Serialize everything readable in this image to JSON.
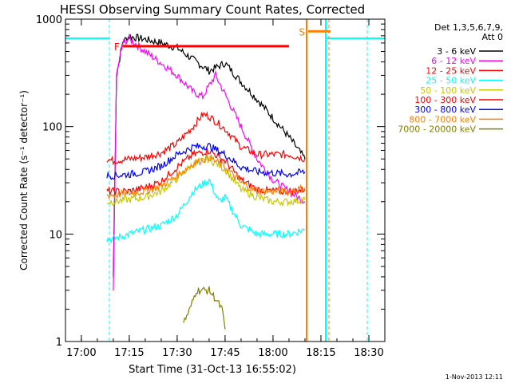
{
  "chart_data": {
    "type": "line",
    "title": "HESSI Observing Summary Count Rates, Corrected",
    "xlabel": "Start Time (31-Oct-13 16:55:02)",
    "ylabel": "Corrected Count Rate (s⁻¹ detector⁻¹)",
    "yscale": "log",
    "ylim": [
      1,
      1000
    ],
    "xlim": [
      "16:55:02",
      "18:35:00"
    ],
    "x_ticks": [
      "17:00",
      "17:15",
      "17:30",
      "17:45",
      "18:00",
      "18:15",
      "18:30"
    ],
    "y_ticks": [
      "1",
      "10",
      "100",
      "1000"
    ],
    "legend_header": [
      "Det 1,3,5,6,7,9,",
      "Att 0"
    ],
    "legend_position": "right, outside plot",
    "footer": "1-Nov-2013 12:11",
    "annotations": [
      {
        "label": "F",
        "color": "#ff0000",
        "x_start": "17:13",
        "x_end": "18:05",
        "y": 560
      },
      {
        "label": "S",
        "color": "#ff8000",
        "x_start": "18:11",
        "x_end": "18:18",
        "y": 770
      }
    ],
    "series": [
      {
        "name": "3 - 6 keV",
        "color": "#000000",
        "x": [
          "17:10",
          "17:11",
          "17:13",
          "17:15",
          "17:20",
          "17:25",
          "17:30",
          "17:35",
          "17:40",
          "17:45",
          "17:50",
          "17:55",
          "18:00",
          "18:05",
          "18:10"
        ],
        "y": [
          4,
          300,
          620,
          690,
          650,
          600,
          540,
          420,
          330,
          390,
          260,
          180,
          120,
          80,
          50
        ]
      },
      {
        "name": "6 - 12 keV",
        "color": "#ff00ff",
        "x": [
          "17:10",
          "17:11",
          "17:13",
          "17:15",
          "17:20",
          "17:25",
          "17:30",
          "17:35",
          "17:38",
          "17:40",
          "17:42",
          "17:45",
          "17:50",
          "17:55",
          "18:00",
          "18:05",
          "18:10"
        ],
        "y": [
          3,
          300,
          600,
          660,
          500,
          390,
          300,
          210,
          190,
          240,
          300,
          200,
          100,
          50,
          32,
          25,
          20
        ]
      },
      {
        "name": "12 - 25 keV",
        "color": "#ff0000",
        "x": [
          "17:08",
          "17:10",
          "17:15",
          "17:20",
          "17:25",
          "17:30",
          "17:35",
          "17:38",
          "17:40",
          "17:45",
          "17:50",
          "17:55",
          "18:00",
          "18:05",
          "18:10"
        ],
        "y": [
          50,
          48,
          50,
          52,
          57,
          70,
          100,
          130,
          125,
          95,
          65,
          55,
          55,
          55,
          50
        ]
      },
      {
        "name": "25 - 50 keV",
        "color": "#00ffff",
        "x": [
          "17:08",
          "17:10",
          "17:15",
          "17:20",
          "17:25",
          "17:30",
          "17:35",
          "17:40",
          "17:43",
          "17:45",
          "17:50",
          "17:55",
          "18:00",
          "18:05",
          "18:10"
        ],
        "y": [
          9,
          9,
          10,
          11,
          12,
          15,
          25,
          32,
          20,
          22,
          12,
          10,
          10,
          10,
          11
        ]
      },
      {
        "name": "50 - 100 keV",
        "color": "#c8c800",
        "x": [
          "17:08",
          "17:10",
          "17:15",
          "17:20",
          "17:25",
          "17:30",
          "17:35",
          "17:40",
          "17:45",
          "17:50",
          "17:55",
          "18:00",
          "18:05",
          "18:10"
        ],
        "y": [
          20,
          20,
          21,
          22,
          25,
          33,
          45,
          50,
          40,
          26,
          22,
          20,
          20,
          21
        ]
      },
      {
        "name": "100 - 300 keV",
        "color": "#ff0000",
        "x": [
          "17:08",
          "17:10",
          "17:15",
          "17:20",
          "17:25",
          "17:30",
          "17:35",
          "17:40",
          "17:45",
          "17:50",
          "17:55",
          "18:00",
          "18:05",
          "18:10"
        ],
        "y": [
          25,
          25,
          25,
          27,
          31,
          42,
          55,
          60,
          48,
          32,
          26,
          25,
          25,
          26
        ]
      },
      {
        "name": "300 - 800 keV",
        "color": "#0000ff",
        "x": [
          "17:08",
          "17:10",
          "17:15",
          "17:20",
          "17:25",
          "17:30",
          "17:35",
          "17:40",
          "17:45",
          "17:50",
          "17:55",
          "18:00",
          "18:05",
          "18:10"
        ],
        "y": [
          35,
          35,
          36,
          38,
          43,
          55,
          65,
          66,
          55,
          42,
          38,
          37,
          36,
          38
        ]
      },
      {
        "name": "800 - 7000 keV",
        "color": "#ff8000",
        "x": [
          "17:08",
          "17:10",
          "17:15",
          "17:20",
          "17:25",
          "17:30",
          "17:35",
          "17:40",
          "17:45",
          "17:50",
          "17:55",
          "18:00",
          "18:05",
          "18:10"
        ],
        "y": [
          23,
          23,
          24,
          25,
          28,
          35,
          45,
          52,
          42,
          30,
          25,
          25,
          25,
          27
        ]
      },
      {
        "name": "7000 - 20000 keV",
        "color": "#808000",
        "x": [
          "17:32",
          "17:34",
          "17:36",
          "17:38",
          "17:40",
          "17:42",
          "17:44",
          "17:45"
        ],
        "y": [
          1.5,
          2,
          3,
          3,
          3,
          2.5,
          2,
          1.3
        ]
      }
    ]
  }
}
